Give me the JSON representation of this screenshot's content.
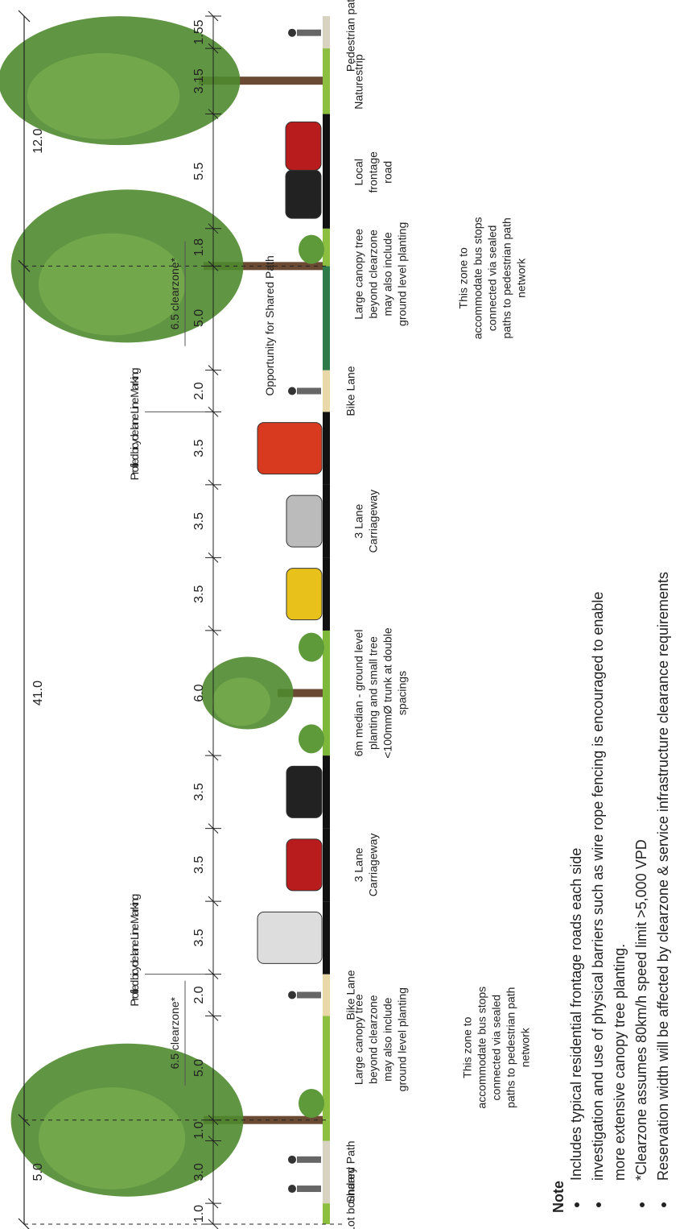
{
  "overall_dimensions": [
    "5.0",
    "41.0",
    "12.0"
  ],
  "segment_dimensions": [
    "1.0",
    "3.0",
    "1.0",
    "5.0",
    "2.0",
    "3.5",
    "3.5",
    "3.5",
    "6.0",
    "3.5",
    "3.5",
    "3.5",
    "2.0",
    "5.0",
    "1.8",
    "5.5",
    "3.15",
    "1.55"
  ],
  "annotations": [
    "6.5 clearzone*",
    "Profiled bicycle lane Line Marking",
    "Profiled bicycle lane Line Marking",
    "6.5 clearzone*",
    "Opportunity for Shared Path"
  ],
  "labels": [
    [
      "Lot boundary"
    ],
    [
      "Shared Path"
    ],
    [
      "Large canopy tree",
      "beyond clearzone",
      "may also include",
      "ground level planting"
    ],
    [
      "This zone to",
      "accommodate bus stops",
      "connected via sealed",
      "paths to pedestrian path",
      "network"
    ],
    [
      "Bike Lane"
    ],
    [
      "3 Lane",
      "Carriageway"
    ],
    [
      "6m median - ground level",
      "planting and small tree",
      "<100mmØ trunk at double",
      "spacings"
    ],
    [
      "3 Lane",
      "Carriageway"
    ],
    [
      "Bike Lane"
    ],
    [
      "Large canopy tree",
      "beyond clearzone",
      "may also include",
      "ground level planting"
    ],
    [
      "This zone to",
      "accommodate bus stops",
      "connected via sealed",
      "paths to pedestrian path",
      "network"
    ],
    [
      "Local",
      "frontage",
      "road"
    ],
    [
      "Naturestrip"
    ],
    [
      "Pedestrian path"
    ]
  ],
  "note": {
    "title": "Note",
    "items": [
      [
        "Includes typical residential frontage roads each side"
      ],
      [
        "investigation and use of physical barriers such as wire rope fencing is encouraged to enable",
        "more extensive canopy tree planting."
      ],
      [
        "*Clearzone assumes 80km/h speed limit >5,000 VPD"
      ],
      [
        "Reservation width will be affected by clearzone & service infrastructure clearance requirements"
      ]
    ]
  }
}
